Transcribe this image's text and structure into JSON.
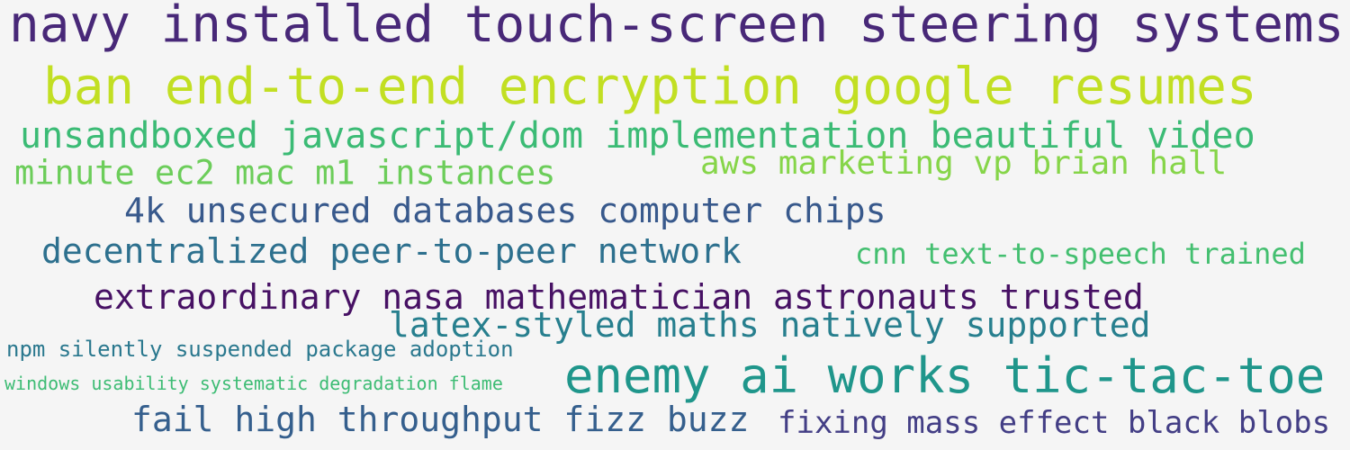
{
  "wordcloud": {
    "phrases": [
      {
        "text": "navy installed touch-screen steering systems",
        "color": "#482878"
      },
      {
        "text": "ban end-to-end encryption google resumes",
        "color": "#c2df23"
      },
      {
        "text": "unsandboxed javascript/dom implementation beautiful video",
        "color": "#3bbb75"
      },
      {
        "text": "minute ec2 mac m1 instances",
        "color": "#6ccd5a"
      },
      {
        "text": "aws marketing vp brian hall",
        "color": "#86d549"
      },
      {
        "text": "4k unsecured databases computer chips",
        "color": "#38598c"
      },
      {
        "text": "decentralized peer-to-peer network",
        "color": "#2d708e"
      },
      {
        "text": "cnn text-to-speech trained",
        "color": "#44bf70"
      },
      {
        "text": "extraordinary nasa mathematician astronauts trusted",
        "color": "#471164"
      },
      {
        "text": "latex-styled maths natively supported",
        "color": "#277f8e"
      },
      {
        "text": "npm silently suspended package adoption",
        "color": "#2a788e"
      },
      {
        "text": "windows usability systematic degradation flame",
        "color": "#3dbc74"
      },
      {
        "text": "enemy ai works tic-tac-toe",
        "color": "#1f968b"
      },
      {
        "text": "fail high throughput fizz buzz",
        "color": "#355f8d"
      },
      {
        "text": "fixing mass effect black blobs",
        "color": "#433e85"
      }
    ]
  }
}
